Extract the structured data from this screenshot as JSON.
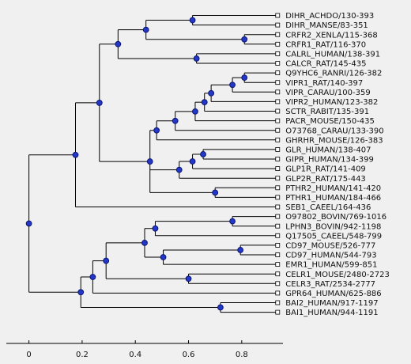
{
  "dendrogram": {
    "leaves": [
      "DIHR_ACHDO/130-393",
      "DIHR_MANSE/83-351",
      "CRFR2_XENLA/115-368",
      "CRFR1_RAT/116-370",
      "CALRL_HUMAN/138-391",
      "CALCR_RAT/145-435",
      "Q9YHC6_RANRI/126-382",
      "VIPR1_RAT/140-397",
      "VIPR_CARAU/100-359",
      "VIPR2_HUMAN/123-382",
      "SCTR_RABIT/135-391",
      "PACR_MOUSE/150-435",
      "O73768_CARAU/133-390",
      "GHRHR_MOUSE/126-383",
      "GLR_HUMAN/138-407",
      "GIPR_HUMAN/134-399",
      "GLP1R_RAT/141-409",
      "GLP2R_RAT/175-443",
      "PTHR2_HUMAN/141-420",
      "PTHR1_HUMAN/184-466",
      "SEB1_CAEEL/164-436",
      "O97802_BOVIN/769-1016",
      "LPHN3_BOVIN/942-1198",
      "Q17505_CAEEL/548-799",
      "CD97_MOUSE/526-777",
      "CD97_HUMAN/544-793",
      "EMR1_HUMAN/599-851",
      "CELR1_MOUSE/2480-2723",
      "CELR3_RAT/2534-2777",
      "GPR64_HUMAN/625-886",
      "BAI2_HUMAN/917-1197",
      "BAI1_HUMAN/944-1191"
    ],
    "leaf_x": 0.935,
    "root": {
      "x": 0.0,
      "children": [
        {
          "x": 0.175,
          "children": [
            {
              "x": 0.265,
              "children": [
                {
                  "x": 0.335,
                  "children": [
                    {
                      "x": 0.44,
                      "children": [
                        {
                          "x": 0.615,
                          "children": [
                            {
                              "leaf": 0
                            },
                            {
                              "leaf": 1
                            }
                          ]
                        },
                        {
                          "x": 0.81,
                          "children": [
                            {
                              "leaf": 2
                            },
                            {
                              "leaf": 3
                            }
                          ]
                        }
                      ]
                    },
                    {
                      "x": 0.63,
                      "children": [
                        {
                          "leaf": 4
                        },
                        {
                          "leaf": 5
                        }
                      ]
                    }
                  ]
                },
                {
                  "x": 0.455,
                  "children": [
                    {
                      "x": 0.48,
                      "children": [
                        {
                          "x": 0.55,
                          "children": [
                            {
                              "x": 0.625,
                              "children": [
                                {
                                  "x": 0.66,
                                  "children": [
                                    {
                                      "x": 0.685,
                                      "children": [
                                        {
                                          "x": 0.765,
                                          "children": [
                                            {
                                              "x": 0.81,
                                              "children": [
                                                {
                                                  "leaf": 6
                                                },
                                                {
                                                  "leaf": 7
                                                }
                                              ]
                                            },
                                            {
                                              "leaf": 8
                                            }
                                          ]
                                        },
                                        {
                                          "leaf": 9
                                        }
                                      ]
                                    },
                                    {
                                      "leaf": 10
                                    }
                                  ]
                                },
                                {
                                  "leaf": 11
                                }
                              ]
                            },
                            {
                              "leaf": 12
                            }
                          ]
                        },
                        {
                          "leaf": 13
                        }
                      ]
                    },
                    {
                      "x": 0.565,
                      "children": [
                        {
                          "x": 0.615,
                          "children": [
                            {
                              "x": 0.655,
                              "children": [
                                {
                                  "leaf": 14
                                },
                                {
                                  "leaf": 15
                                }
                              ]
                            },
                            {
                              "leaf": 16
                            }
                          ]
                        },
                        {
                          "leaf": 17
                        }
                      ]
                    },
                    {
                      "x": 0.7,
                      "children": [
                        {
                          "leaf": 18
                        },
                        {
                          "leaf": 19
                        }
                      ]
                    }
                  ]
                }
              ]
            },
            {
              "leaf": 20
            }
          ]
        },
        {
          "x": 0.195,
          "children": [
            {
              "x": 0.24,
              "children": [
                {
                  "x": 0.29,
                  "children": [
                    {
                      "x": 0.435,
                      "children": [
                        {
                          "x": 0.475,
                          "children": [
                            {
                              "x": 0.765,
                              "children": [
                                {
                                  "leaf": 21
                                },
                                {
                                  "leaf": 22
                                }
                              ]
                            },
                            {
                              "leaf": 23
                            }
                          ]
                        },
                        {
                          "x": 0.505,
                          "children": [
                            {
                              "x": 0.795,
                              "children": [
                                {
                                  "leaf": 24
                                },
                                {
                                  "leaf": 25
                                }
                              ]
                            },
                            {
                              "leaf": 26
                            }
                          ]
                        }
                      ]
                    },
                    {
                      "x": 0.6,
                      "children": [
                        {
                          "leaf": 27
                        },
                        {
                          "leaf": 28
                        }
                      ]
                    }
                  ]
                },
                {
                  "leaf": 29
                }
              ]
            },
            {
              "x": 0.72,
              "children": [
                {
                  "leaf": 30
                },
                {
                  "leaf": 31
                }
              ]
            }
          ]
        }
      ]
    }
  },
  "x_axis": {
    "ticks": [
      0,
      0.2,
      0.4,
      0.6,
      0.8
    ],
    "tick_labels": [
      "0",
      "0.2",
      "0.4",
      "0.6",
      "0.8"
    ],
    "xlim": [
      -0.085,
      0.955
    ]
  },
  "colors": {
    "background": "#f0f0f0",
    "node_fill": "#2338c8",
    "branch": "#000000"
  }
}
